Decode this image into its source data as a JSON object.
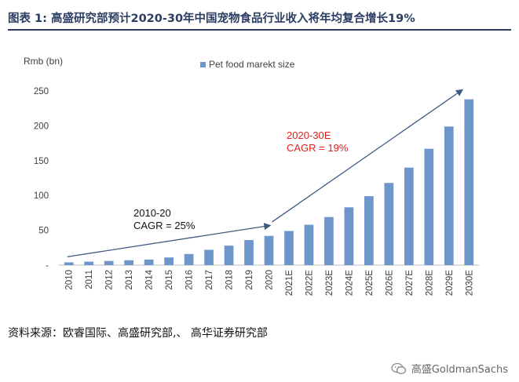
{
  "title": "图表 1: 高盛研究部预计2020-30年中国宠物食品行业收入将年均复合增长19%",
  "source": "资料来源：欧睿国际、高盛研究部,、 高华证券研究部",
  "watermark": {
    "text": "高盛GoldmanSachs",
    "icon": "wechat-icon"
  },
  "colors": {
    "title": "#2b3d62",
    "bar": "#6f96ca",
    "annotation_red": "#e02020",
    "annotation_dark": "#111111",
    "arrow": "#3f5a80"
  },
  "chart_data": {
    "type": "bar",
    "unit_label": "Rmb (bn)",
    "categories": [
      "2010",
      "2011",
      "2012",
      "2013",
      "2014",
      "2015",
      "2016",
      "2017",
      "2018",
      "2019",
      "2020",
      "2021E",
      "2022E",
      "2023E",
      "2024E",
      "2025E",
      "2026E",
      "2027E",
      "2028E",
      "2029E",
      "2030E"
    ],
    "series": [
      {
        "name": "Pet food marekt size",
        "values": [
          4,
          5,
          6,
          7,
          8,
          11,
          16,
          22,
          28,
          36,
          42,
          49,
          58,
          69,
          83,
          99,
          118,
          140,
          167,
          199,
          238
        ]
      }
    ],
    "ylim": [
      0,
      250
    ],
    "yticks": [
      "-",
      "50",
      "100",
      "150",
      "200",
      "250"
    ],
    "grid": false,
    "legend_position": "top",
    "annotations": [
      {
        "lines": [
          "2010-20",
          "CAGR = 25%"
        ],
        "color": "dark",
        "from": "2010",
        "to": "2020"
      },
      {
        "lines": [
          "2020-30E",
          "CAGR = 19%"
        ],
        "color": "red",
        "from": "2020",
        "to": "2030E"
      }
    ]
  }
}
